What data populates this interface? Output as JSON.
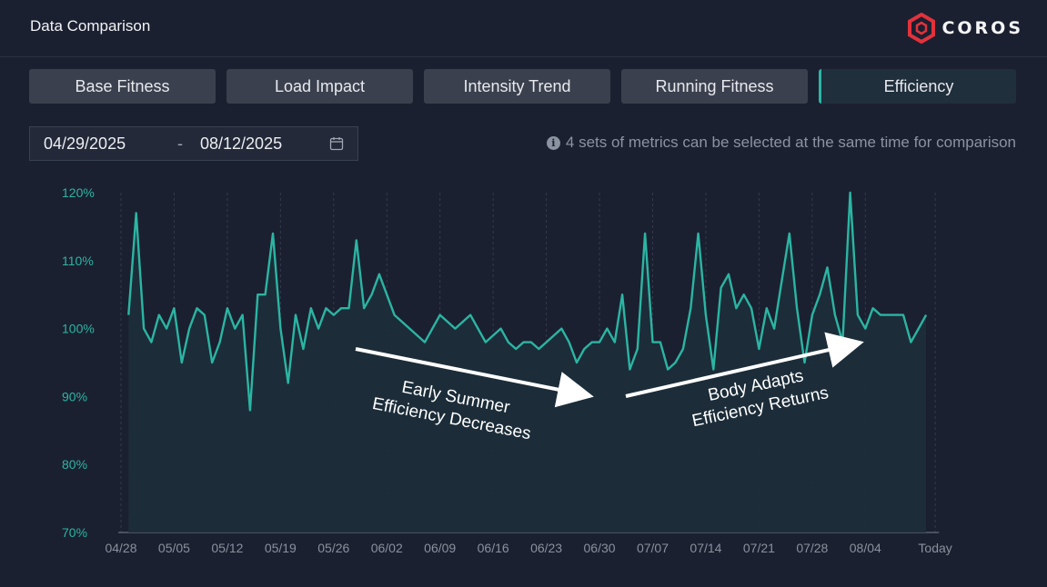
{
  "header": {
    "title": "Data Comparison",
    "brand": "COROS"
  },
  "tabs": [
    {
      "label": "Base Fitness",
      "active": false
    },
    {
      "label": "Load Impact",
      "active": false
    },
    {
      "label": "Intensity Trend",
      "active": false
    },
    {
      "label": "Running Fitness",
      "active": false
    },
    {
      "label": "Efficiency",
      "active": true
    }
  ],
  "date_range": {
    "start": "04/29/2025",
    "separator": "-",
    "end": "08/12/2025",
    "icon": "calendar-icon"
  },
  "hint": {
    "icon": "info-icon",
    "text": "4 sets of metrics can be selected at the same time for comparison"
  },
  "colors": {
    "accent": "#2bb5a3",
    "background": "#1b2030",
    "brand_red": "#e2323c"
  },
  "annotations": [
    {
      "lines": [
        "Early Summer",
        "Efficiency Decreases"
      ]
    },
    {
      "lines": [
        "Body Adapts",
        "Efficiency Returns"
      ]
    }
  ],
  "chart_data": {
    "type": "area",
    "title": "",
    "xlabel": "",
    "ylabel": "",
    "ylim": [
      70,
      120
    ],
    "y_ticks": [
      "70%",
      "80%",
      "90%",
      "100%",
      "110%",
      "120%"
    ],
    "x_ticks": [
      "04/28",
      "05/05",
      "05/12",
      "05/19",
      "05/26",
      "06/02",
      "06/09",
      "06/16",
      "06/23",
      "06/30",
      "07/07",
      "07/14",
      "07/21",
      "07/28",
      "08/04",
      "Today"
    ],
    "grid": "vertical dashed",
    "series": [
      {
        "color": "#2bb5a3",
        "x": [
          "04/29",
          "04/30",
          "05/01",
          "05/02",
          "05/03",
          "05/04",
          "05/05",
          "05/06",
          "05/07",
          "05/08",
          "05/09",
          "05/10",
          "05/11",
          "05/12",
          "05/13",
          "05/14",
          "05/15",
          "05/16",
          "05/17",
          "05/18",
          "05/19",
          "05/20",
          "05/21",
          "05/22",
          "05/23",
          "05/24",
          "05/25",
          "05/26",
          "05/27",
          "05/28",
          "05/29",
          "05/30",
          "05/31",
          "06/01",
          "06/03",
          "06/05",
          "06/07",
          "06/09",
          "06/11",
          "06/13",
          "06/15",
          "06/17",
          "06/18",
          "06/19",
          "06/20",
          "06/21",
          "06/22",
          "06/23",
          "06/25",
          "06/26",
          "06/27",
          "06/28",
          "06/29",
          "06/30",
          "07/01",
          "07/02",
          "07/03",
          "07/04",
          "07/05",
          "07/06",
          "07/07",
          "07/08",
          "07/09",
          "07/10",
          "07/11",
          "07/12",
          "07/13",
          "07/14",
          "07/15",
          "07/16",
          "07/17",
          "07/18",
          "07/19",
          "07/20",
          "07/21",
          "07/22",
          "07/23",
          "07/24",
          "07/25",
          "07/26",
          "07/27",
          "07/28",
          "07/29",
          "07/30",
          "07/31",
          "08/01",
          "08/02",
          "08/03",
          "08/04",
          "08/05",
          "08/06",
          "08/07",
          "08/08",
          "08/09",
          "08/10",
          "08/11",
          "08/12"
        ],
        "values": [
          102,
          117,
          100,
          98,
          102,
          100,
          103,
          95,
          100,
          103,
          102,
          95,
          98,
          103,
          100,
          102,
          88,
          105,
          105,
          114,
          100,
          92,
          102,
          97,
          103,
          100,
          103,
          102,
          103,
          103,
          113,
          103,
          105,
          108,
          102,
          100,
          98,
          102,
          100,
          102,
          98,
          100,
          98,
          97,
          98,
          98,
          97,
          98,
          100,
          98,
          95,
          97,
          98,
          98,
          100,
          98,
          105,
          94,
          97,
          114,
          98,
          98,
          94,
          95,
          97,
          103,
          114,
          102,
          94,
          106,
          108,
          103,
          105,
          103,
          97,
          103,
          100,
          107,
          114,
          103,
          95,
          102,
          105,
          109,
          102,
          98,
          120,
          102,
          100,
          103,
          102,
          102,
          102,
          102,
          98,
          100,
          102
        ]
      }
    ]
  }
}
